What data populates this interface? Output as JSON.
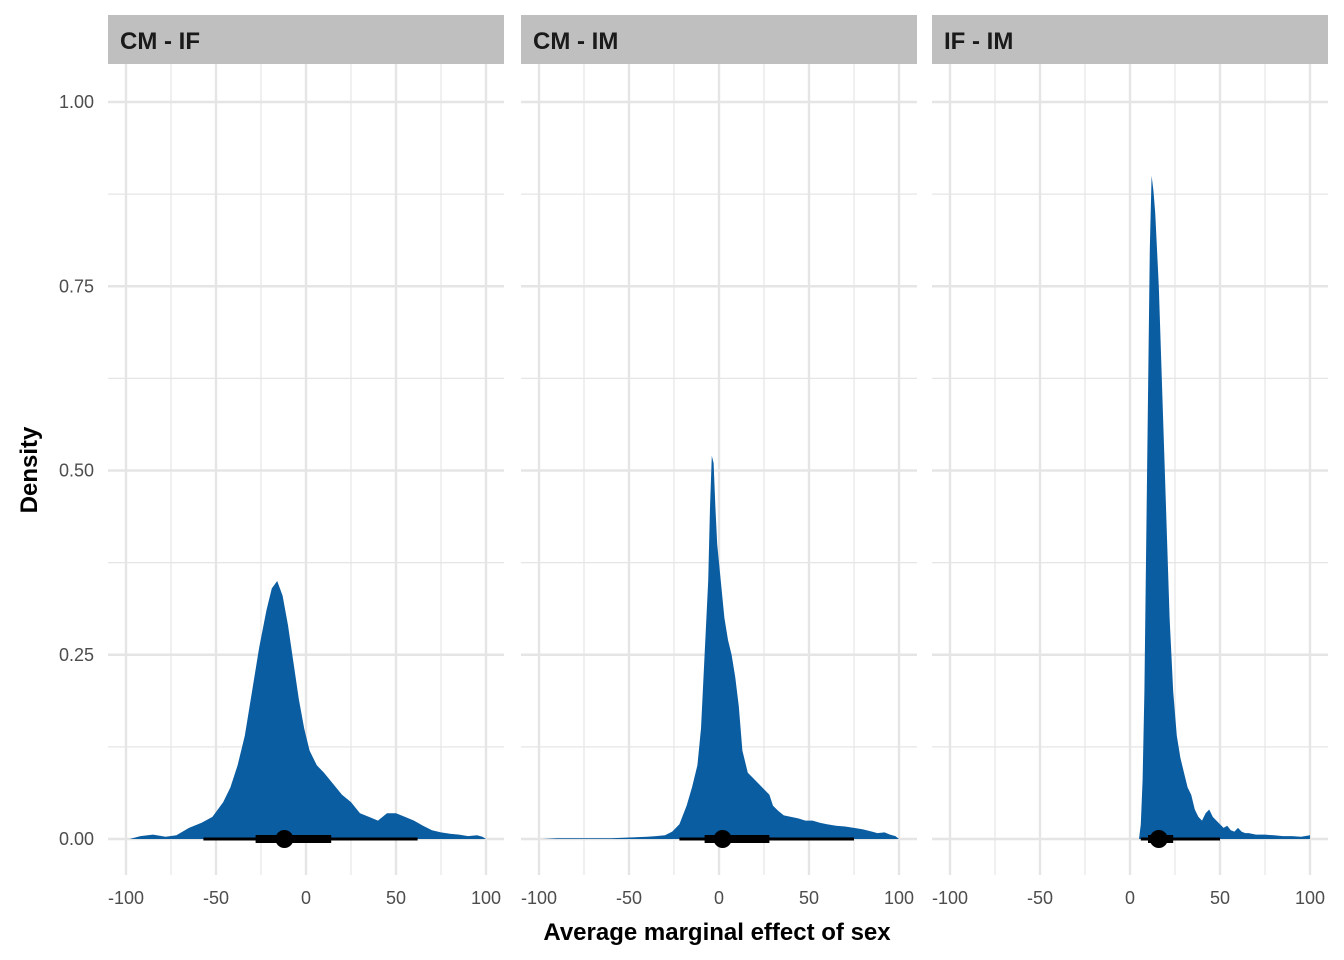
{
  "chart_data": {
    "type": "area",
    "xlabel": "Average marginal effect of sex",
    "ylabel": "Density",
    "xlim": [
      -100,
      100
    ],
    "ylim": [
      0,
      1
    ],
    "x_ticks": [
      -100,
      -50,
      0,
      50,
      100
    ],
    "x_tick_labels": [
      "-100",
      "-50",
      "0",
      "50",
      "100"
    ],
    "y_ticks": [
      0,
      0.25,
      0.5,
      0.75,
      1.0
    ],
    "y_tick_labels": [
      "0.00",
      "0.25",
      "0.50",
      "0.75",
      "1.00"
    ],
    "grid": true,
    "legend": "none",
    "colors": {
      "fill": "#0b5da2",
      "interval": "#000000",
      "strip_bg": "#bfbfbf",
      "grid": "#e5e5e5"
    },
    "panels": [
      {
        "label": "CM - IF",
        "density": [
          [
            -98,
            0
          ],
          [
            -92,
            0.004
          ],
          [
            -85,
            0.006
          ],
          [
            -78,
            0.003
          ],
          [
            -72,
            0.005
          ],
          [
            -65,
            0.015
          ],
          [
            -58,
            0.022
          ],
          [
            -52,
            0.03
          ],
          [
            -46,
            0.05
          ],
          [
            -42,
            0.07
          ],
          [
            -38,
            0.1
          ],
          [
            -34,
            0.14
          ],
          [
            -30,
            0.2
          ],
          [
            -26,
            0.26
          ],
          [
            -22,
            0.31
          ],
          [
            -19,
            0.34
          ],
          [
            -16,
            0.35
          ],
          [
            -13,
            0.33
          ],
          [
            -10,
            0.29
          ],
          [
            -7,
            0.24
          ],
          [
            -4,
            0.19
          ],
          [
            -1,
            0.15
          ],
          [
            2,
            0.12
          ],
          [
            6,
            0.1
          ],
          [
            10,
            0.09
          ],
          [
            15,
            0.075
          ],
          [
            20,
            0.06
          ],
          [
            25,
            0.05
          ],
          [
            30,
            0.035
          ],
          [
            35,
            0.03
          ],
          [
            40,
            0.025
          ],
          [
            45,
            0.035
          ],
          [
            50,
            0.035
          ],
          [
            55,
            0.03
          ],
          [
            60,
            0.025
          ],
          [
            65,
            0.018
          ],
          [
            70,
            0.012
          ],
          [
            75,
            0.009
          ],
          [
            80,
            0.007
          ],
          [
            85,
            0.006
          ],
          [
            90,
            0.004
          ],
          [
            95,
            0.005
          ],
          [
            98,
            0.003
          ],
          [
            100,
            0
          ]
        ],
        "point": -12,
        "inner_interval": [
          -28,
          14
        ],
        "outer_interval": [
          -57,
          62
        ]
      },
      {
        "label": "CM - IM",
        "density": [
          [
            -98,
            0
          ],
          [
            -90,
            0.001
          ],
          [
            -80,
            0.001
          ],
          [
            -70,
            0.001
          ],
          [
            -60,
            0.001
          ],
          [
            -50,
            0.002
          ],
          [
            -40,
            0.003
          ],
          [
            -35,
            0.004
          ],
          [
            -30,
            0.005
          ],
          [
            -26,
            0.01
          ],
          [
            -22,
            0.02
          ],
          [
            -18,
            0.045
          ],
          [
            -15,
            0.07
          ],
          [
            -12,
            0.1
          ],
          [
            -10,
            0.15
          ],
          [
            -8,
            0.25
          ],
          [
            -6,
            0.35
          ],
          [
            -5,
            0.45
          ],
          [
            -4,
            0.52
          ],
          [
            -3,
            0.51
          ],
          [
            -2,
            0.45
          ],
          [
            -1,
            0.4
          ],
          [
            1,
            0.35
          ],
          [
            3,
            0.3
          ],
          [
            5,
            0.27
          ],
          [
            7,
            0.25
          ],
          [
            9,
            0.22
          ],
          [
            11,
            0.18
          ],
          [
            13,
            0.12
          ],
          [
            16,
            0.09
          ],
          [
            20,
            0.08
          ],
          [
            24,
            0.07
          ],
          [
            28,
            0.06
          ],
          [
            30,
            0.045
          ],
          [
            33,
            0.038
          ],
          [
            36,
            0.032
          ],
          [
            40,
            0.03
          ],
          [
            44,
            0.028
          ],
          [
            48,
            0.025
          ],
          [
            52,
            0.025
          ],
          [
            56,
            0.022
          ],
          [
            60,
            0.02
          ],
          [
            65,
            0.018
          ],
          [
            70,
            0.017
          ],
          [
            75,
            0.015
          ],
          [
            80,
            0.013
          ],
          [
            85,
            0.01
          ],
          [
            88,
            0.008
          ],
          [
            92,
            0.009
          ],
          [
            95,
            0.006
          ],
          [
            98,
            0.004
          ],
          [
            100,
            0
          ]
        ],
        "point": 2,
        "inner_interval": [
          -8,
          28
        ],
        "outer_interval": [
          -22,
          75
        ]
      },
      {
        "label": "IF - IM",
        "density": [
          [
            5,
            0
          ],
          [
            6,
            0.02
          ],
          [
            7,
            0.08
          ],
          [
            8,
            0.2
          ],
          [
            9,
            0.4
          ],
          [
            10,
            0.6
          ],
          [
            11,
            0.8
          ],
          [
            12,
            0.9
          ],
          [
            13,
            0.88
          ],
          [
            14,
            0.85
          ],
          [
            16,
            0.75
          ],
          [
            18,
            0.6
          ],
          [
            20,
            0.45
          ],
          [
            22,
            0.3
          ],
          [
            24,
            0.2
          ],
          [
            26,
            0.14
          ],
          [
            28,
            0.11
          ],
          [
            30,
            0.09
          ],
          [
            32,
            0.07
          ],
          [
            34,
            0.06
          ],
          [
            36,
            0.04
          ],
          [
            38,
            0.03
          ],
          [
            40,
            0.025
          ],
          [
            42,
            0.035
          ],
          [
            44,
            0.04
          ],
          [
            46,
            0.03
          ],
          [
            48,
            0.025
          ],
          [
            50,
            0.02
          ],
          [
            52,
            0.015
          ],
          [
            54,
            0.018
          ],
          [
            56,
            0.012
          ],
          [
            58,
            0.01
          ],
          [
            60,
            0.015
          ],
          [
            62,
            0.01
          ],
          [
            64,
            0.008
          ],
          [
            66,
            0.008
          ],
          [
            70,
            0.006
          ],
          [
            75,
            0.006
          ],
          [
            80,
            0.005
          ],
          [
            85,
            0.004
          ],
          [
            90,
            0.004
          ],
          [
            95,
            0.003
          ],
          [
            100,
            0.005
          ],
          [
            100,
            0
          ]
        ],
        "point": 16,
        "inner_interval": [
          10,
          24
        ],
        "outer_interval": [
          6,
          50
        ]
      }
    ]
  }
}
